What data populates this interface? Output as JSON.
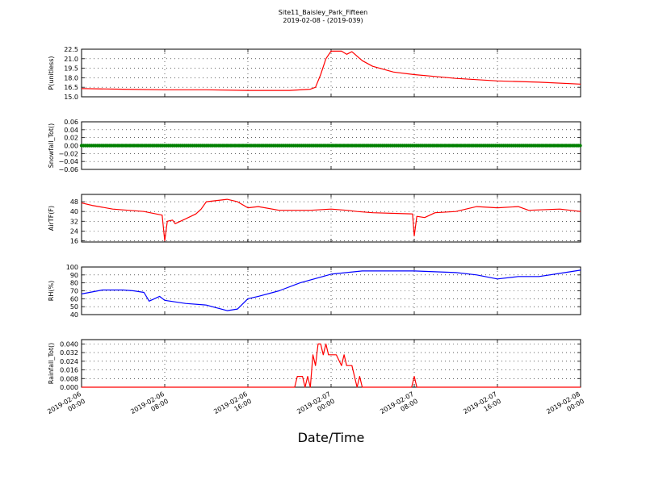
{
  "figure": {
    "title": "Site11_Baisley_Park_Fifteen",
    "subtitle": "2019-02-08 - (2019-039)",
    "xlabel": "Date/Time"
  },
  "colors": {
    "red": "#ff0000",
    "green": "#008000",
    "blue": "#0000ff",
    "axis": "#000000"
  },
  "chart_data": [
    {
      "type": "line",
      "ylabel": "P(unitless)",
      "color": "#ff0000",
      "ylim": [
        15.0,
        22.5
      ],
      "yticks": [
        "15.0",
        "16.5",
        "18.0",
        "19.5",
        "21.0",
        "22.5"
      ],
      "x_range": [
        "2019-02-06 00:00",
        "2019-02-08 00:00"
      ],
      "xticks": [
        "2019-02-06 00:00",
        "2019-02-06 08:00",
        "2019-02-06 16:00",
        "2019-02-07 00:00",
        "2019-02-07 08:00",
        "2019-02-07 16:00",
        "2019-02-08 00:00"
      ],
      "grid": true,
      "x": [
        "2019-02-06 00:00",
        "2019-02-06 04:00",
        "2019-02-06 08:00",
        "2019-02-06 12:00",
        "2019-02-06 16:00",
        "2019-02-06 20:00",
        "2019-02-06 22:00",
        "2019-02-06 22:30",
        "2019-02-06 23:00",
        "2019-02-06 23:30",
        "2019-02-07 00:00",
        "2019-02-07 01:00",
        "2019-02-07 01:30",
        "2019-02-07 02:00",
        "2019-02-07 03:00",
        "2019-02-07 04:00",
        "2019-02-07 06:00",
        "2019-02-07 08:00",
        "2019-02-07 10:00",
        "2019-02-07 12:00",
        "2019-02-07 16:00",
        "2019-02-07 20:00",
        "2019-02-08 00:00"
      ],
      "y": [
        16.3,
        16.2,
        16.1,
        16.1,
        16.0,
        16.0,
        16.2,
        16.5,
        18.5,
        21.0,
        22.2,
        22.2,
        21.7,
        22.1,
        20.7,
        19.8,
        18.9,
        18.5,
        18.2,
        17.9,
        17.5,
        17.3,
        17.0
      ]
    },
    {
      "type": "scatter",
      "ylabel": "Snowfall_Tot()",
      "color": "#008000",
      "ylim": [
        -0.06,
        0.06
      ],
      "yticks": [
        "−0.06",
        "−0.04",
        "−0.02",
        "0.00",
        "0.02",
        "0.04",
        "0.06"
      ],
      "x_range": [
        "2019-02-06 00:00",
        "2019-02-08 00:00"
      ],
      "grid": true,
      "x": [
        "2019-02-06 00:00",
        "2019-02-08 00:00"
      ],
      "y": [
        0,
        0
      ],
      "note_constant": "zero line of markers across the full range"
    },
    {
      "type": "line",
      "ylabel": "AirTF(F)",
      "color": "#ff0000",
      "ylim": [
        15,
        54
      ],
      "yticks": [
        "16",
        "24",
        "32",
        "40",
        "48"
      ],
      "x_range": [
        "2019-02-06 00:00",
        "2019-02-08 00:00"
      ],
      "grid": true,
      "x": [
        "2019-02-06 00:00",
        "2019-02-06 01:00",
        "2019-02-06 03:00",
        "2019-02-06 06:00",
        "2019-02-06 07:45",
        "2019-02-06 08:00",
        "2019-02-06 08:15",
        "2019-02-06 08:45",
        "2019-02-06 09:00",
        "2019-02-06 10:00",
        "2019-02-06 11:00",
        "2019-02-06 11:30",
        "2019-02-06 12:00",
        "2019-02-06 14:00",
        "2019-02-06 15:00",
        "2019-02-06 16:00",
        "2019-02-06 17:00",
        "2019-02-06 19:00",
        "2019-02-06 22:00",
        "2019-02-07 00:00",
        "2019-02-07 01:30",
        "2019-02-07 02:30",
        "2019-02-07 04:00",
        "2019-02-07 07:50",
        "2019-02-07 08:00",
        "2019-02-07 08:15",
        "2019-02-07 09:00",
        "2019-02-07 10:00",
        "2019-02-07 12:00",
        "2019-02-07 14:00",
        "2019-02-07 16:00",
        "2019-02-07 18:00",
        "2019-02-07 19:00",
        "2019-02-07 22:00",
        "2019-02-08 00:00"
      ],
      "y": [
        47,
        45,
        42,
        40,
        37,
        16,
        32,
        33,
        30,
        34,
        38,
        42,
        48,
        50,
        48,
        43,
        44,
        41,
        41,
        42,
        41,
        40,
        39,
        38,
        20,
        36,
        35,
        39,
        40,
        44,
        43,
        44,
        41,
        42,
        40
      ]
    },
    {
      "type": "line",
      "ylabel": "RH(%)",
      "color": "#0000ff",
      "ylim": [
        40,
        100
      ],
      "yticks": [
        "40",
        "50",
        "60",
        "70",
        "80",
        "90",
        "100"
      ],
      "x_range": [
        "2019-02-06 00:00",
        "2019-02-08 00:00"
      ],
      "grid": true,
      "x": [
        "2019-02-06 00:00",
        "2019-02-06 02:00",
        "2019-02-06 04:00",
        "2019-02-06 05:00",
        "2019-02-06 06:00",
        "2019-02-06 06:30",
        "2019-02-06 07:30",
        "2019-02-06 08:00",
        "2019-02-06 10:00",
        "2019-02-06 12:00",
        "2019-02-06 14:00",
        "2019-02-06 15:00",
        "2019-02-06 16:00",
        "2019-02-06 17:00",
        "2019-02-06 19:00",
        "2019-02-06 21:00",
        "2019-02-07 00:00",
        "2019-02-07 03:00",
        "2019-02-07 08:00",
        "2019-02-07 12:00",
        "2019-02-07 14:00",
        "2019-02-07 16:00",
        "2019-02-07 18:00",
        "2019-02-07 20:00",
        "2019-02-07 22:00",
        "2019-02-08 00:00"
      ],
      "y": [
        66,
        71,
        71,
        70,
        68,
        57,
        63,
        58,
        54,
        52,
        45,
        47,
        60,
        63,
        70,
        80,
        91,
        95,
        95,
        93,
        90,
        85,
        88,
        88,
        92,
        96
      ]
    },
    {
      "type": "line",
      "ylabel": "Rainfall_Tot()",
      "color": "#ff0000",
      "ylim": [
        0,
        0.044
      ],
      "yticks": [
        "0.000",
        "0.008",
        "0.016",
        "0.024",
        "0.032",
        "0.040"
      ],
      "x_range": [
        "2019-02-06 00:00",
        "2019-02-08 00:00"
      ],
      "xticks": [
        "2019-02-06 00:00",
        "2019-02-06 08:00",
        "2019-02-06 16:00",
        "2019-02-07 00:00",
        "2019-02-07 08:00",
        "2019-02-07 16:00",
        "2019-02-08 00:00"
      ],
      "grid": true,
      "x": [
        "2019-02-06 00:00",
        "2019-02-06 20:30",
        "2019-02-06 20:45",
        "2019-02-06 21:15",
        "2019-02-06 21:30",
        "2019-02-06 21:45",
        "2019-02-06 22:00",
        "2019-02-06 22:15",
        "2019-02-06 22:30",
        "2019-02-06 22:45",
        "2019-02-06 23:00",
        "2019-02-06 23:15",
        "2019-02-06 23:30",
        "2019-02-06 23:45",
        "2019-02-07 00:00",
        "2019-02-07 00:15",
        "2019-02-07 00:30",
        "2019-02-07 01:00",
        "2019-02-07 01:15",
        "2019-02-07 01:30",
        "2019-02-07 01:45",
        "2019-02-07 02:00",
        "2019-02-07 02:30",
        "2019-02-07 02:45",
        "2019-02-07 03:00",
        "2019-02-07 03:15",
        "2019-02-07 03:30",
        "2019-02-07 07:45",
        "2019-02-07 08:00",
        "2019-02-07 08:15",
        "2019-02-07 08:30",
        "2019-02-08 00:00"
      ],
      "y": [
        0,
        0,
        0.01,
        0.01,
        0,
        0.01,
        0,
        0.03,
        0.02,
        0.04,
        0.04,
        0.03,
        0.04,
        0.03,
        0.03,
        0.03,
        0.03,
        0.02,
        0.03,
        0.02,
        0.02,
        0.02,
        0,
        0.01,
        0,
        0,
        0,
        0,
        0.01,
        0,
        0,
        0
      ]
    }
  ]
}
